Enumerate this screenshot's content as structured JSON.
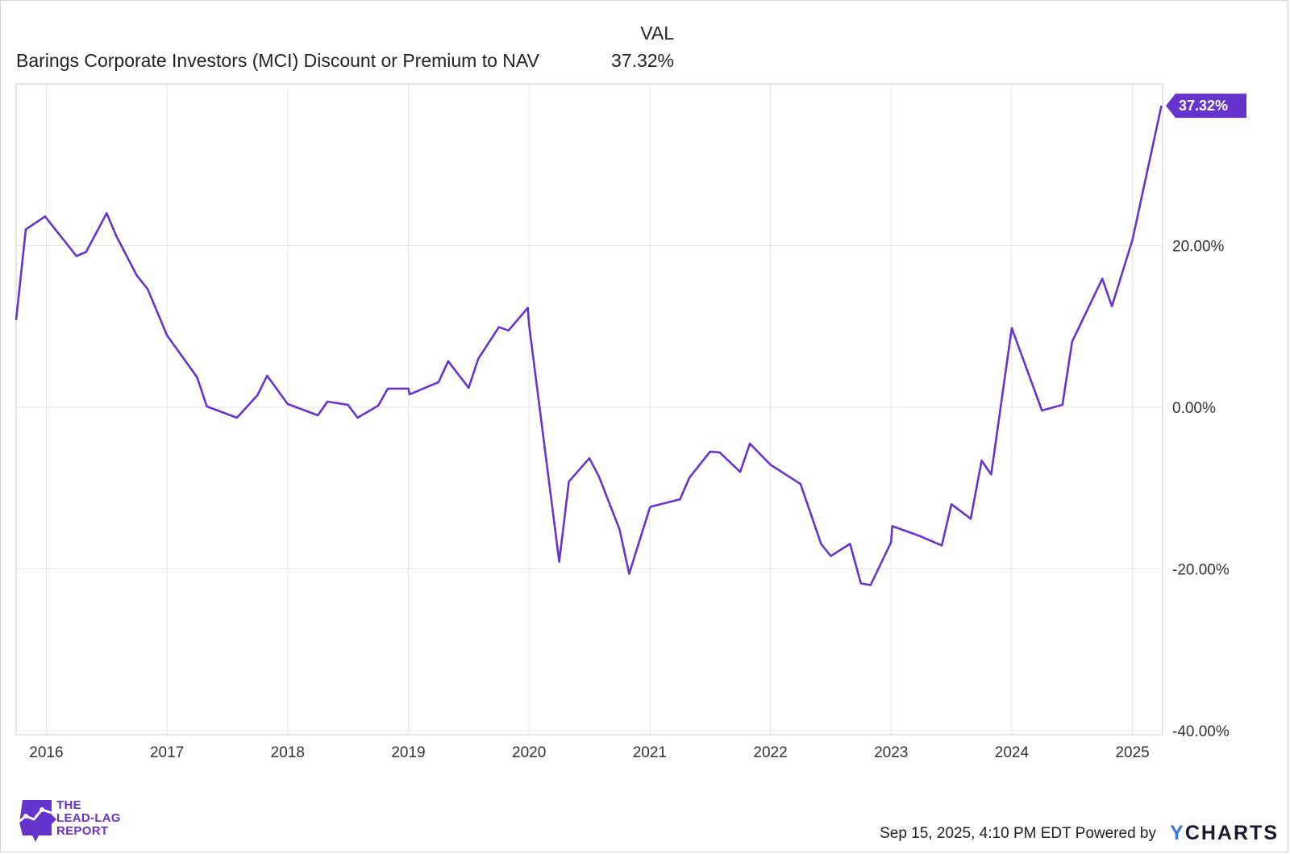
{
  "chart_data": {
    "type": "line",
    "legend": {
      "header": "VAL",
      "series_label": "Barings Corporate Investors (MCI) Discount or Premium to NAV",
      "series_value": "37.32%"
    },
    "end_value_label": "37.32%",
    "x_tick_labels": [
      "2016",
      "2017",
      "2018",
      "2019",
      "2020",
      "2021",
      "2022",
      "2023",
      "2024",
      "2025"
    ],
    "y_tick_labels": [
      "20.00%",
      "0.00%",
      "-20.00%",
      "-40.00%"
    ],
    "y_tick_values": [
      20,
      0,
      -20,
      -40
    ],
    "x_tick_years": [
      2016,
      2017,
      2018,
      2019,
      2020,
      2021,
      2022,
      2023,
      2024,
      2025
    ],
    "xlim": [
      2015.75,
      2025.25
    ],
    "ylim": [
      -40.5,
      40
    ],
    "series": [
      {
        "name": "Barings Corporate Investors (MCI) Discount or Premium to NAV",
        "color": "#6633cc",
        "x": [
          2015.75,
          2015.83,
          2015.99,
          2016.25,
          2016.33,
          2016.5,
          2016.58,
          2016.75,
          2016.84,
          2017.0,
          2017.25,
          2017.33,
          2017.58,
          2017.75,
          2017.83,
          2018.0,
          2018.25,
          2018.33,
          2018.5,
          2018.58,
          2018.75,
          2018.83,
          2019.0,
          2019.01,
          2019.25,
          2019.33,
          2019.5,
          2019.58,
          2019.75,
          2019.83,
          2019.99,
          2020.0,
          2020.25,
          2020.33,
          2020.5,
          2020.58,
          2020.75,
          2020.83,
          2021.0,
          2021.01,
          2021.25,
          2021.33,
          2021.5,
          2021.58,
          2021.75,
          2021.83,
          2022.0,
          2022.25,
          2022.42,
          2022.5,
          2022.66,
          2022.75,
          2022.83,
          2023.0,
          2023.01,
          2023.25,
          2023.42,
          2023.5,
          2023.66,
          2023.75,
          2023.83,
          2024.0,
          2024.25,
          2024.42,
          2024.5,
          2024.75,
          2024.83,
          2025.0,
          2025.24
        ],
        "values": [
          10.8,
          22.0,
          23.6,
          18.7,
          19.2,
          24.0,
          21.2,
          16.3,
          14.6,
          8.9,
          3.7,
          0.1,
          -1.3,
          1.5,
          3.9,
          0.4,
          -1.0,
          0.7,
          0.3,
          -1.3,
          0.2,
          2.3,
          2.3,
          1.6,
          3.1,
          5.7,
          2.4,
          6.0,
          9.9,
          9.5,
          12.3,
          10.2,
          -19.1,
          -9.2,
          -6.3,
          -8.6,
          -15.1,
          -20.6,
          -12.5,
          -12.3,
          -11.4,
          -8.7,
          -5.5,
          -5.6,
          -8.0,
          -4.5,
          -7.1,
          -9.5,
          -16.9,
          -18.4,
          -16.9,
          -21.8,
          -22.0,
          -16.7,
          -14.7,
          -16.0,
          -17.1,
          -12.0,
          -13.8,
          -6.6,
          -8.3,
          9.8,
          -0.4,
          0.3,
          8.1,
          15.9,
          12.5,
          20.7,
          37.3
        ]
      }
    ]
  },
  "logo": {
    "line1": "THE",
    "line2": "LEAD-LAG",
    "line3": "REPORT"
  },
  "footer": {
    "timestamp": "Sep 15, 2025, 4:10 PM EDT",
    "powered_by": "Powered by",
    "brand_y": "Y",
    "brand_rest": "CHARTS"
  }
}
